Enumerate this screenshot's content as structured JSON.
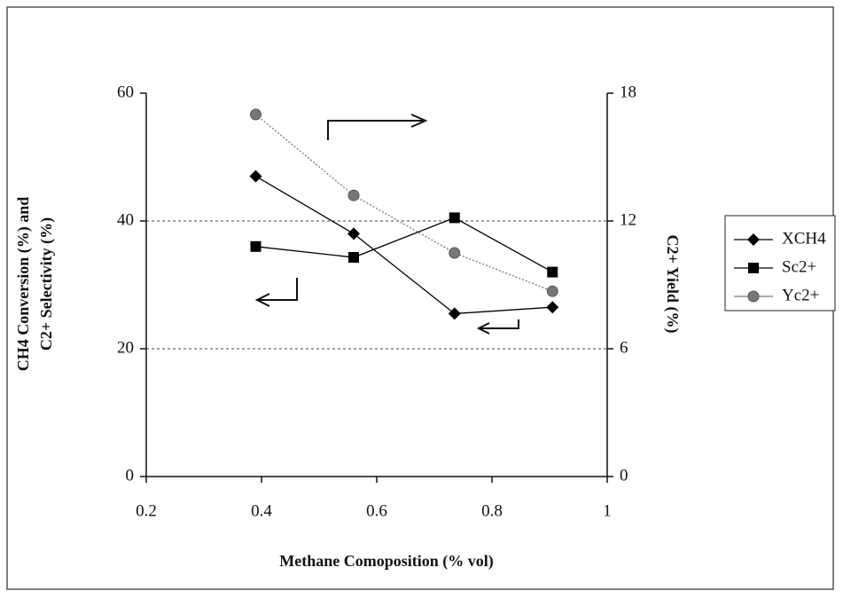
{
  "chart_data": {
    "type": "line",
    "xlabel": "Methane Comoposition (% vol)",
    "ylabel": [
      "CH4 Conversion (%) and",
      "C2+ Selectivity (%)"
    ],
    "y2label": "C2+ Yield (%)",
    "x": [
      0.39,
      0.56,
      0.735,
      0.905
    ],
    "series": [
      {
        "name": "XCH4",
        "color": "#000000",
        "marker": "diamond",
        "values": [
          47,
          38,
          25.5,
          26.5
        ]
      },
      {
        "name": "Sc2+",
        "color": "#000000",
        "marker": "square",
        "values": [
          36,
          34.3,
          40.5,
          32
        ]
      },
      {
        "name": "Yc2+",
        "color": "#777777",
        "marker": "circle",
        "axis": "y2",
        "values": [
          17.0,
          13.2,
          10.5,
          8.7
        ]
      }
    ],
    "xlim": [
      0.2,
      1
    ],
    "xticks": [
      0.2,
      0.4,
      0.6,
      0.8,
      1
    ],
    "ylim": [
      0,
      60
    ],
    "yticks": [
      0,
      20,
      40,
      60
    ],
    "y2lim": [
      0,
      18
    ],
    "y2ticks": [
      0,
      6,
      12,
      18
    ],
    "grid": true,
    "legend": "right"
  }
}
